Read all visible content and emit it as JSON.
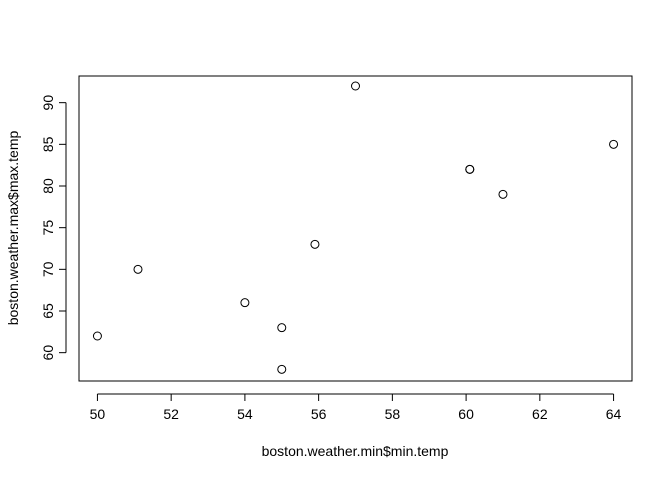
{
  "chart_data": {
    "type": "scatter",
    "title": "",
    "xlabel": "boston.weather.min$min.temp",
    "ylabel": "boston.weather.max$max.temp",
    "xlim": [
      49.5,
      64.5
    ],
    "ylim": [
      56.6,
      93.2
    ],
    "x_ticks": [
      50,
      52,
      54,
      56,
      58,
      60,
      62,
      64
    ],
    "y_ticks": [
      60,
      65,
      70,
      75,
      80,
      85,
      90
    ],
    "grid": false,
    "legend": "none",
    "marker": "open-circle",
    "colors": {
      "marker": "#000000",
      "axis": "#000000",
      "background": "#ffffff"
    },
    "points": [
      {
        "x": 50.0,
        "y": 62
      },
      {
        "x": 51.1,
        "y": 70
      },
      {
        "x": 54.0,
        "y": 66
      },
      {
        "x": 55.0,
        "y": 63
      },
      {
        "x": 55.0,
        "y": 58
      },
      {
        "x": 55.9,
        "y": 73
      },
      {
        "x": 57.0,
        "y": 92
      },
      {
        "x": 60.1,
        "y": 82
      },
      {
        "x": 60.1,
        "y": 82
      },
      {
        "x": 61.0,
        "y": 79
      },
      {
        "x": 64.0,
        "y": 85
      }
    ]
  }
}
